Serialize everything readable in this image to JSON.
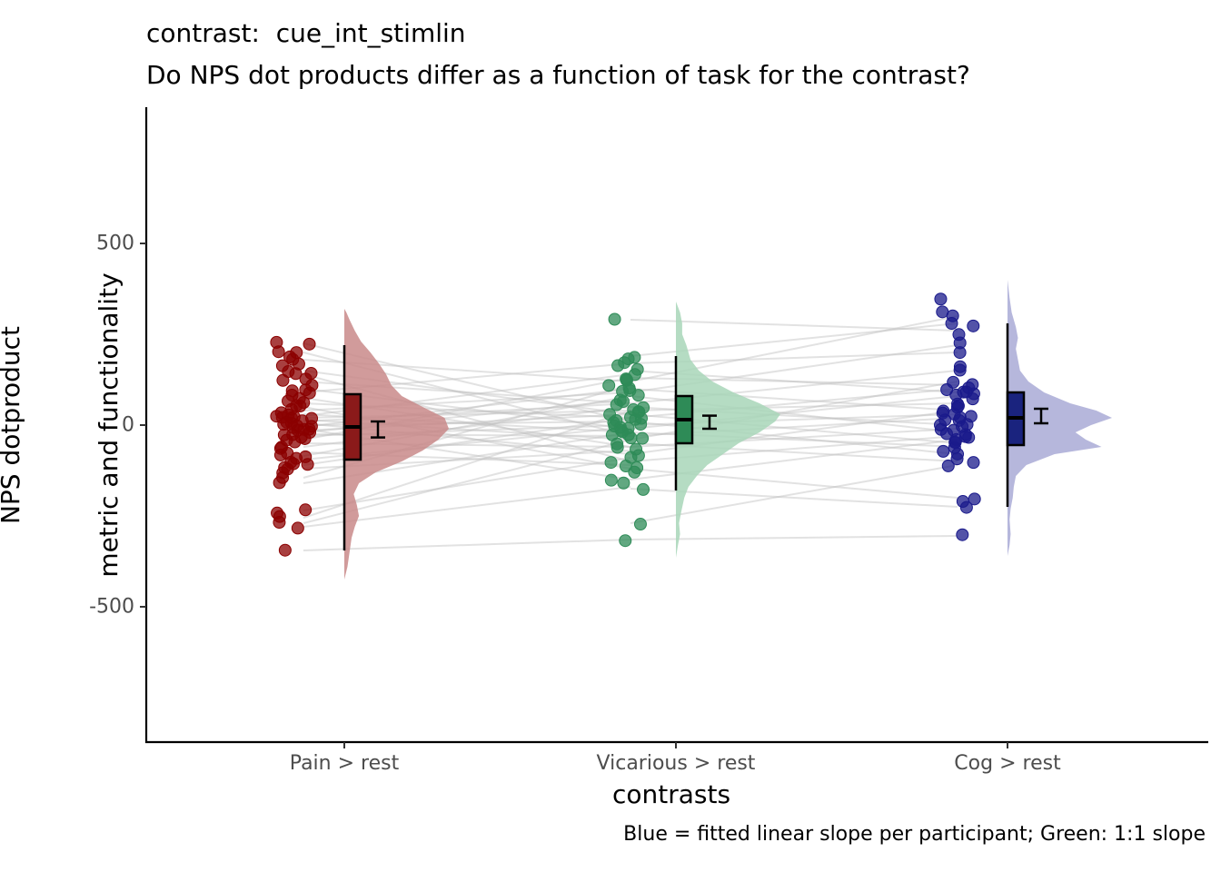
{
  "title": "contrast:  cue_int_stimlin",
  "subtitle": "Do NPS dot products differ as a function of task for the contrast?",
  "caption": "Blue = fitted linear slope per participant; Green: 1:1 slope",
  "chart_data": {
    "type": "raincloud",
    "xlabel": "contrasts",
    "ylabel_line1": "NPS dotproduct",
    "ylabel_line2": "metric and functionality",
    "ylim": [
      -880,
      880
    ],
    "yticks": [
      {
        "value": 500,
        "label": "500"
      },
      {
        "value": 0,
        "label": "0"
      },
      {
        "value": -500,
        "label": "-500"
      }
    ],
    "grid": false,
    "categories": [
      {
        "label": "Pain > rest",
        "dot_color": "#8B0000",
        "box_fill": "#8B1A1A",
        "density_color": "#C98A8A",
        "box": {
          "q1": -95,
          "median": -5,
          "q3": 85,
          "whisker_low": -345,
          "whisker_high": 220
        },
        "mean": -12,
        "se": 22,
        "density": [
          [
            -425,
            0
          ],
          [
            -390,
            0.03
          ],
          [
            -350,
            0.05
          ],
          [
            -310,
            0.07
          ],
          [
            -280,
            0.1
          ],
          [
            -250,
            0.14
          ],
          [
            -220,
            0.12
          ],
          [
            -190,
            0.09
          ],
          [
            -160,
            0.14
          ],
          [
            -130,
            0.3
          ],
          [
            -100,
            0.55
          ],
          [
            -70,
            0.75
          ],
          [
            -40,
            0.9
          ],
          [
            -10,
            1.0
          ],
          [
            20,
            0.96
          ],
          [
            50,
            0.75
          ],
          [
            80,
            0.55
          ],
          [
            110,
            0.45
          ],
          [
            140,
            0.4
          ],
          [
            170,
            0.33
          ],
          [
            200,
            0.25
          ],
          [
            230,
            0.16
          ],
          [
            260,
            0.1
          ],
          [
            290,
            0.05
          ],
          [
            310,
            0.02
          ],
          [
            320,
            0
          ]
        ],
        "points": [
          225,
          220,
          205,
          200,
          190,
          180,
          170,
          160,
          150,
          145,
          140,
          130,
          120,
          110,
          100,
          95,
          90,
          85,
          75,
          70,
          60,
          55,
          50,
          40,
          35,
          30,
          25,
          22,
          20,
          18,
          15,
          10,
          8,
          5,
          2,
          0,
          -5,
          -8,
          -10,
          -12,
          -15,
          -20,
          -25,
          -30,
          -35,
          -40,
          -45,
          -50,
          -60,
          -65,
          -75,
          -80,
          -85,
          -95,
          -100,
          -105,
          -110,
          -115,
          -120,
          -130,
          -145,
          -160,
          -235,
          -240,
          -255,
          -270,
          -280,
          -345
        ]
      },
      {
        "label": "Vicarious > rest",
        "dot_color": "#2E8B57",
        "box_fill": "#2E8B57",
        "density_color": "#A8D6B8",
        "box": {
          "q1": -50,
          "median": 15,
          "q3": 80,
          "whisker_low": -180,
          "whisker_high": 190
        },
        "mean": 8,
        "se": 18,
        "density": [
          [
            -365,
            0
          ],
          [
            -330,
            0.02
          ],
          [
            -300,
            0.04
          ],
          [
            -270,
            0.03
          ],
          [
            -240,
            0.05
          ],
          [
            -200,
            0.08
          ],
          [
            -170,
            0.12
          ],
          [
            -140,
            0.2
          ],
          [
            -110,
            0.3
          ],
          [
            -80,
            0.45
          ],
          [
            -50,
            0.6
          ],
          [
            -20,
            0.8
          ],
          [
            10,
            0.95
          ],
          [
            30,
            1.0
          ],
          [
            60,
            0.8
          ],
          [
            90,
            0.55
          ],
          [
            120,
            0.35
          ],
          [
            150,
            0.22
          ],
          [
            180,
            0.14
          ],
          [
            220,
            0.1
          ],
          [
            250,
            0.06
          ],
          [
            280,
            0.06
          ],
          [
            310,
            0.04
          ],
          [
            340,
            0
          ]
        ],
        "points": [
          290,
          190,
          180,
          170,
          160,
          150,
          140,
          130,
          125,
          120,
          110,
          100,
          95,
          90,
          80,
          70,
          65,
          60,
          50,
          45,
          40,
          35,
          30,
          25,
          20,
          15,
          12,
          10,
          5,
          0,
          -5,
          -10,
          -15,
          -20,
          -25,
          -30,
          -35,
          -40,
          -50,
          -60,
          -70,
          -80,
          -90,
          -100,
          -110,
          -120,
          -130,
          -150,
          -160,
          -175,
          -270,
          -315
        ]
      },
      {
        "label": "Cog > rest",
        "dot_color": "#1A1A8B",
        "box_fill": "#1A237E",
        "density_color": "#A9AAD6",
        "box": {
          "q1": -55,
          "median": 20,
          "q3": 90,
          "whisker_low": -225,
          "whisker_high": 280
        },
        "mean": 25,
        "se": 20,
        "density": [
          [
            -360,
            0
          ],
          [
            -330,
            0.02
          ],
          [
            -300,
            0.03
          ],
          [
            -260,
            0.02
          ],
          [
            -230,
            0.03
          ],
          [
            -200,
            0.05
          ],
          [
            -170,
            0.06
          ],
          [
            -140,
            0.08
          ],
          [
            -110,
            0.18
          ],
          [
            -80,
            0.45
          ],
          [
            -60,
            0.9
          ],
          [
            -40,
            0.75
          ],
          [
            -20,
            0.65
          ],
          [
            0,
            0.8
          ],
          [
            20,
            1.0
          ],
          [
            40,
            0.85
          ],
          [
            60,
            0.6
          ],
          [
            90,
            0.35
          ],
          [
            120,
            0.2
          ],
          [
            150,
            0.12
          ],
          [
            180,
            0.1
          ],
          [
            210,
            0.08
          ],
          [
            240,
            0.1
          ],
          [
            270,
            0.08
          ],
          [
            310,
            0.04
          ],
          [
            350,
            0.02
          ],
          [
            400,
            0
          ]
        ],
        "points": [
          350,
          310,
          300,
          280,
          270,
          250,
          225,
          200,
          160,
          150,
          120,
          110,
          105,
          100,
          95,
          90,
          85,
          80,
          70,
          60,
          50,
          45,
          40,
          35,
          30,
          25,
          20,
          15,
          10,
          5,
          0,
          -5,
          -10,
          -15,
          -20,
          -25,
          -30,
          -35,
          -40,
          -45,
          -50,
          -60,
          -70,
          -80,
          -90,
          -100,
          -110,
          -200,
          -210,
          -225,
          -305
        ]
      }
    ],
    "paired_lines": {
      "color": "#BEBEBE",
      "description_color_note": "",
      "segments_12": [
        [
          225,
          10
        ],
        [
          200,
          -30
        ],
        [
          180,
          120
        ],
        [
          150,
          30
        ],
        [
          140,
          -100
        ],
        [
          120,
          60
        ],
        [
          100,
          -10
        ],
        [
          90,
          170
        ],
        [
          75,
          -60
        ],
        [
          60,
          20
        ],
        [
          50,
          -120
        ],
        [
          40,
          90
        ],
        [
          30,
          -20
        ],
        [
          25,
          140
        ],
        [
          20,
          40
        ],
        [
          15,
          -40
        ],
        [
          10,
          60
        ],
        [
          5,
          -80
        ],
        [
          0,
          10
        ],
        [
          -5,
          100
        ],
        [
          -10,
          -150
        ],
        [
          -15,
          30
        ],
        [
          -20,
          70
        ],
        [
          -25,
          -30
        ],
        [
          -30,
          0
        ],
        [
          -40,
          130
        ],
        [
          -50,
          -60
        ],
        [
          -60,
          50
        ],
        [
          -75,
          -110
        ],
        [
          -85,
          80
        ],
        [
          -95,
          -5
        ],
        [
          -110,
          20
        ],
        [
          -120,
          -70
        ],
        [
          -145,
          110
        ],
        [
          -160,
          -20
        ],
        [
          -235,
          -90
        ],
        [
          -255,
          40
        ],
        [
          -270,
          -40
        ],
        [
          -280,
          -170
        ],
        [
          -345,
          -315
        ]
      ],
      "segments_23": [
        [
          290,
          260
        ],
        [
          190,
          280
        ],
        [
          170,
          200
        ],
        [
          150,
          90
        ],
        [
          130,
          110
        ],
        [
          120,
          300
        ],
        [
          100,
          40
        ],
        [
          90,
          220
        ],
        [
          80,
          -20
        ],
        [
          60,
          150
        ],
        [
          50,
          0
        ],
        [
          40,
          60
        ],
        [
          30,
          -50
        ],
        [
          20,
          100
        ],
        [
          10,
          -80
        ],
        [
          0,
          30
        ],
        [
          -10,
          80
        ],
        [
          -20,
          -60
        ],
        [
          -30,
          20
        ],
        [
          -40,
          120
        ],
        [
          -50,
          -100
        ],
        [
          -60,
          -10
        ],
        [
          -80,
          40
        ],
        [
          -100,
          -30
        ],
        [
          -120,
          -200
        ],
        [
          -150,
          -40
        ],
        [
          -175,
          -225
        ],
        [
          -270,
          -110
        ],
        [
          -315,
          -305
        ]
      ]
    }
  }
}
